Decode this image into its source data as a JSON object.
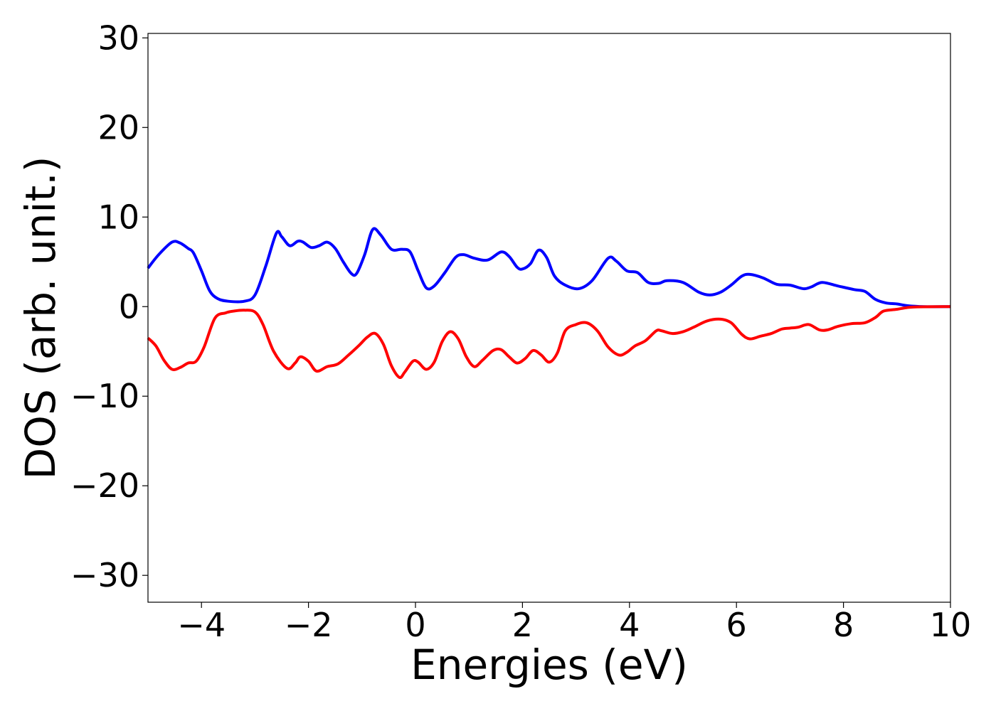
{
  "chart_data": {
    "type": "line",
    "title": "",
    "xlabel": "Energies (eV)",
    "ylabel": "DOS (arb. unit.)",
    "xlim": [
      -5,
      10
    ],
    "ylim": [
      -33,
      30.5
    ],
    "grid": false,
    "legend": "none",
    "x_ticks": [
      {
        "value": -4,
        "label": "−4"
      },
      {
        "value": -2,
        "label": "−2"
      },
      {
        "value": 0,
        "label": "0"
      },
      {
        "value": 2,
        "label": "2"
      },
      {
        "value": 4,
        "label": "4"
      },
      {
        "value": 6,
        "label": "6"
      },
      {
        "value": 8,
        "label": "8"
      },
      {
        "value": 10,
        "label": "10"
      }
    ],
    "y_ticks": [
      {
        "value": 30,
        "label": "30"
      },
      {
        "value": 20,
        "label": "20"
      },
      {
        "value": 10,
        "label": "10"
      },
      {
        "value": 0,
        "label": "0"
      },
      {
        "value": -10,
        "label": "−10"
      },
      {
        "value": -20,
        "label": "−20"
      },
      {
        "value": -30,
        "label": "−30"
      }
    ],
    "series": [
      {
        "color": "#0000ff",
        "points": [
          [
            -5.0,
            4.3
          ],
          [
            -4.8,
            5.8
          ],
          [
            -4.55,
            7.2
          ],
          [
            -4.4,
            7.1
          ],
          [
            -4.25,
            6.5
          ],
          [
            -4.15,
            6.0
          ],
          [
            -4.0,
            4.0
          ],
          [
            -3.85,
            1.8
          ],
          [
            -3.7,
            0.9
          ],
          [
            -3.5,
            0.6
          ],
          [
            -3.2,
            0.6
          ],
          [
            -3.0,
            1.3
          ],
          [
            -2.8,
            4.5
          ],
          [
            -2.6,
            8.2
          ],
          [
            -2.5,
            7.8
          ],
          [
            -2.35,
            6.8
          ],
          [
            -2.2,
            7.3
          ],
          [
            -2.1,
            7.2
          ],
          [
            -1.95,
            6.6
          ],
          [
            -1.8,
            6.8
          ],
          [
            -1.65,
            7.2
          ],
          [
            -1.5,
            6.5
          ],
          [
            -1.35,
            5.0
          ],
          [
            -1.2,
            3.7
          ],
          [
            -1.1,
            3.7
          ],
          [
            -0.95,
            5.8
          ],
          [
            -0.8,
            8.6
          ],
          [
            -0.65,
            8.0
          ],
          [
            -0.45,
            6.4
          ],
          [
            -0.25,
            6.4
          ],
          [
            -0.1,
            6.1
          ],
          [
            0.05,
            4.0
          ],
          [
            0.2,
            2.1
          ],
          [
            0.35,
            2.3
          ],
          [
            0.55,
            3.8
          ],
          [
            0.75,
            5.5
          ],
          [
            0.9,
            5.8
          ],
          [
            1.1,
            5.4
          ],
          [
            1.35,
            5.2
          ],
          [
            1.6,
            6.1
          ],
          [
            1.75,
            5.6
          ],
          [
            1.9,
            4.4
          ],
          [
            2.0,
            4.2
          ],
          [
            2.15,
            4.8
          ],
          [
            2.3,
            6.3
          ],
          [
            2.45,
            5.5
          ],
          [
            2.6,
            3.4
          ],
          [
            2.8,
            2.4
          ],
          [
            3.05,
            2.0
          ],
          [
            3.3,
            2.9
          ],
          [
            3.6,
            5.4
          ],
          [
            3.75,
            5.1
          ],
          [
            3.95,
            4.0
          ],
          [
            4.15,
            3.8
          ],
          [
            4.35,
            2.7
          ],
          [
            4.55,
            2.6
          ],
          [
            4.7,
            2.9
          ],
          [
            5.0,
            2.7
          ],
          [
            5.3,
            1.6
          ],
          [
            5.5,
            1.3
          ],
          [
            5.7,
            1.6
          ],
          [
            5.9,
            2.4
          ],
          [
            6.1,
            3.4
          ],
          [
            6.25,
            3.6
          ],
          [
            6.5,
            3.2
          ],
          [
            6.75,
            2.5
          ],
          [
            7.0,
            2.4
          ],
          [
            7.25,
            2.0
          ],
          [
            7.4,
            2.2
          ],
          [
            7.6,
            2.7
          ],
          [
            7.9,
            2.3
          ],
          [
            8.2,
            1.9
          ],
          [
            8.4,
            1.7
          ],
          [
            8.6,
            0.8
          ],
          [
            8.8,
            0.4
          ],
          [
            9.0,
            0.3
          ],
          [
            9.2,
            0.1
          ],
          [
            9.5,
            0.0
          ],
          [
            10.0,
            0.0
          ]
        ]
      },
      {
        "color": "#ff0000",
        "points": [
          [
            -5.0,
            -3.5
          ],
          [
            -4.85,
            -4.4
          ],
          [
            -4.7,
            -6.0
          ],
          [
            -4.55,
            -7.0
          ],
          [
            -4.4,
            -6.8
          ],
          [
            -4.25,
            -6.3
          ],
          [
            -4.1,
            -6.1
          ],
          [
            -3.95,
            -4.5
          ],
          [
            -3.75,
            -1.3
          ],
          [
            -3.55,
            -0.7
          ],
          [
            -3.4,
            -0.5
          ],
          [
            -3.2,
            -0.4
          ],
          [
            -3.0,
            -0.6
          ],
          [
            -2.85,
            -2.0
          ],
          [
            -2.65,
            -5.0
          ],
          [
            -2.4,
            -6.9
          ],
          [
            -2.25,
            -6.3
          ],
          [
            -2.15,
            -5.6
          ],
          [
            -2.0,
            -6.1
          ],
          [
            -1.85,
            -7.2
          ],
          [
            -1.65,
            -6.7
          ],
          [
            -1.45,
            -6.4
          ],
          [
            -1.25,
            -5.4
          ],
          [
            -1.05,
            -4.3
          ],
          [
            -0.9,
            -3.4
          ],
          [
            -0.75,
            -3.0
          ],
          [
            -0.6,
            -4.2
          ],
          [
            -0.45,
            -6.6
          ],
          [
            -0.3,
            -7.9
          ],
          [
            -0.2,
            -7.3
          ],
          [
            -0.05,
            -6.1
          ],
          [
            0.05,
            -6.2
          ],
          [
            0.2,
            -7.0
          ],
          [
            0.35,
            -6.2
          ],
          [
            0.5,
            -3.9
          ],
          [
            0.65,
            -2.8
          ],
          [
            0.8,
            -3.6
          ],
          [
            0.95,
            -5.6
          ],
          [
            1.1,
            -6.7
          ],
          [
            1.25,
            -6.0
          ],
          [
            1.45,
            -4.9
          ],
          [
            1.6,
            -4.8
          ],
          [
            1.75,
            -5.6
          ],
          [
            1.9,
            -6.3
          ],
          [
            2.05,
            -5.8
          ],
          [
            2.2,
            -4.9
          ],
          [
            2.35,
            -5.4
          ],
          [
            2.5,
            -6.2
          ],
          [
            2.65,
            -5.2
          ],
          [
            2.8,
            -2.7
          ],
          [
            3.0,
            -2.0
          ],
          [
            3.2,
            -1.8
          ],
          [
            3.4,
            -2.7
          ],
          [
            3.6,
            -4.5
          ],
          [
            3.8,
            -5.4
          ],
          [
            3.95,
            -5.1
          ],
          [
            4.1,
            -4.4
          ],
          [
            4.3,
            -3.8
          ],
          [
            4.5,
            -2.7
          ],
          [
            4.6,
            -2.7
          ],
          [
            4.8,
            -3.0
          ],
          [
            5.0,
            -2.8
          ],
          [
            5.2,
            -2.3
          ],
          [
            5.45,
            -1.6
          ],
          [
            5.7,
            -1.4
          ],
          [
            5.9,
            -1.8
          ],
          [
            6.1,
            -3.1
          ],
          [
            6.25,
            -3.6
          ],
          [
            6.45,
            -3.3
          ],
          [
            6.65,
            -3.0
          ],
          [
            6.85,
            -2.5
          ],
          [
            7.0,
            -2.4
          ],
          [
            7.15,
            -2.3
          ],
          [
            7.35,
            -2.0
          ],
          [
            7.55,
            -2.6
          ],
          [
            7.7,
            -2.6
          ],
          [
            7.9,
            -2.2
          ],
          [
            8.15,
            -1.9
          ],
          [
            8.4,
            -1.8
          ],
          [
            8.6,
            -1.2
          ],
          [
            8.75,
            -0.5
          ],
          [
            9.0,
            -0.3
          ],
          [
            9.3,
            -0.05
          ],
          [
            10.0,
            0.0
          ]
        ]
      }
    ]
  }
}
